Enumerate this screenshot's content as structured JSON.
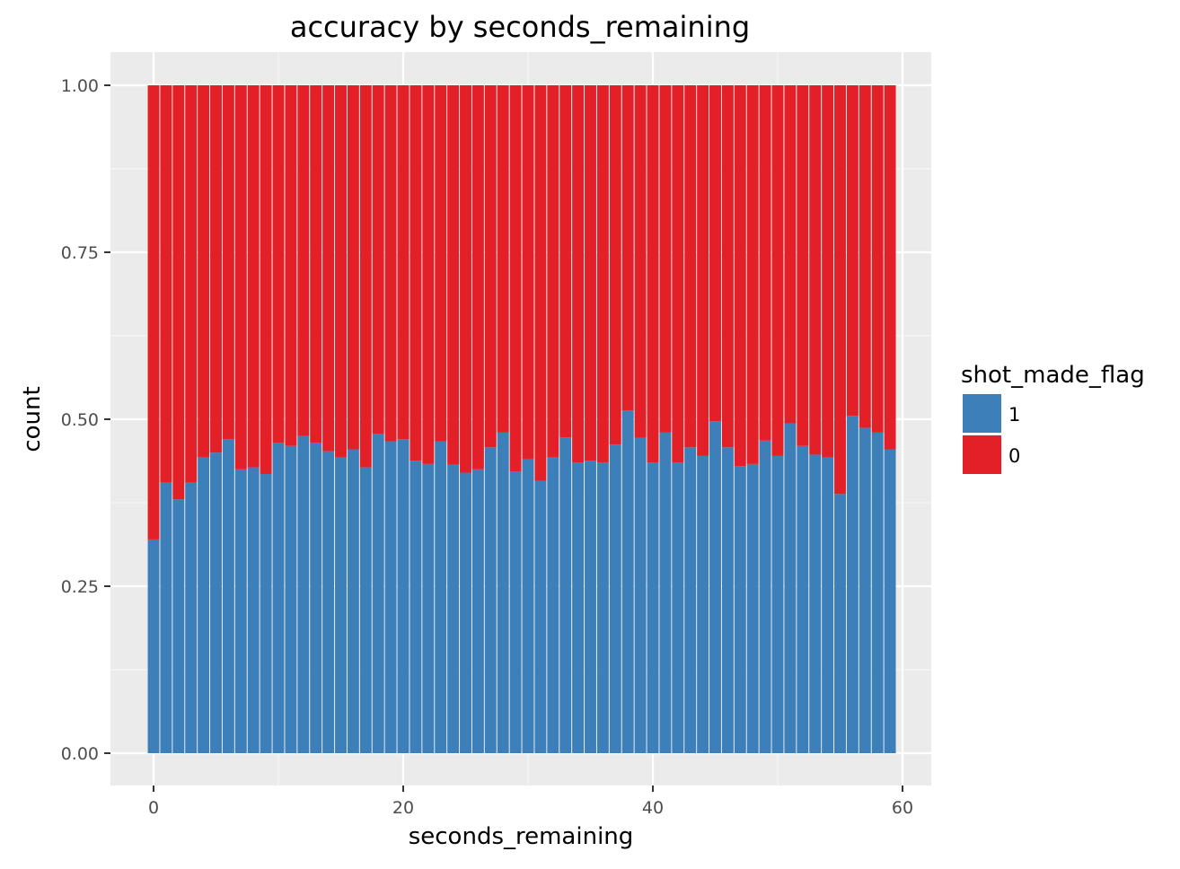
{
  "chart_data": {
    "type": "bar",
    "stacked": true,
    "title": "accuracy by seconds_remaining",
    "xlabel": "seconds_remaining",
    "ylabel": "count",
    "xlim": [
      -0.5,
      59.5
    ],
    "ylim": [
      0,
      1
    ],
    "x_ticks": [
      0,
      20,
      40,
      60
    ],
    "y_ticks": [
      "0.00",
      "0.25",
      "0.50",
      "0.75",
      "1.00"
    ],
    "grid": true,
    "legend_position": "right",
    "legend": {
      "title": "shot_made_flag",
      "entries": [
        {
          "label": "1",
          "color": "#3d7fb8"
        },
        {
          "label": "0",
          "color": "#e31f28"
        }
      ]
    },
    "x": [
      0,
      1,
      2,
      3,
      4,
      5,
      6,
      7,
      8,
      9,
      10,
      11,
      12,
      13,
      14,
      15,
      16,
      17,
      18,
      19,
      20,
      21,
      22,
      23,
      24,
      25,
      26,
      27,
      28,
      29,
      30,
      31,
      32,
      33,
      34,
      35,
      36,
      37,
      38,
      39,
      40,
      41,
      42,
      43,
      44,
      45,
      46,
      47,
      48,
      49,
      50,
      51,
      52,
      53,
      54,
      55,
      56,
      57,
      58,
      59
    ],
    "series": [
      {
        "name": "1",
        "color": "#3d7fb8",
        "values": [
          0.32,
          0.405,
          0.38,
          0.405,
          0.443,
          0.45,
          0.47,
          0.425,
          0.428,
          0.418,
          0.465,
          0.46,
          0.475,
          0.465,
          0.452,
          0.443,
          0.455,
          0.428,
          0.478,
          0.467,
          0.47,
          0.438,
          0.433,
          0.467,
          0.432,
          0.42,
          0.425,
          0.458,
          0.48,
          0.422,
          0.44,
          0.408,
          0.443,
          0.473,
          0.435,
          0.438,
          0.435,
          0.462,
          0.513,
          0.472,
          0.435,
          0.48,
          0.435,
          0.458,
          0.445,
          0.497,
          0.458,
          0.43,
          0.433,
          0.468,
          0.445,
          0.494,
          0.46,
          0.447,
          0.443,
          0.388,
          0.505,
          0.487,
          0.48,
          0.455
        ]
      },
      {
        "name": "0",
        "color": "#e31f28",
        "values": [
          0.68,
          0.595,
          0.62,
          0.595,
          0.557,
          0.55,
          0.53,
          0.575,
          0.572,
          0.582,
          0.535,
          0.54,
          0.525,
          0.535,
          0.548,
          0.557,
          0.545,
          0.572,
          0.522,
          0.533,
          0.53,
          0.562,
          0.567,
          0.533,
          0.568,
          0.58,
          0.575,
          0.542,
          0.52,
          0.578,
          0.56,
          0.592,
          0.557,
          0.527,
          0.565,
          0.562,
          0.565,
          0.538,
          0.487,
          0.528,
          0.565,
          0.52,
          0.565,
          0.542,
          0.555,
          0.503,
          0.542,
          0.57,
          0.567,
          0.532,
          0.555,
          0.506,
          0.54,
          0.553,
          0.557,
          0.612,
          0.495,
          0.513,
          0.52,
          0.545
        ]
      }
    ]
  }
}
